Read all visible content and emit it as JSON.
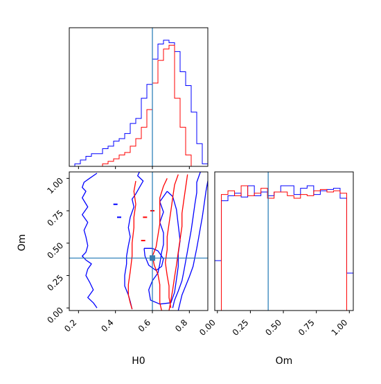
{
  "chart_data": [
    {
      "type": "histogram",
      "panel": "H0 marginal",
      "x": [
        0.15,
        0.18,
        0.21,
        0.24,
        0.27,
        0.3,
        0.33,
        0.36,
        0.39,
        0.42,
        0.45,
        0.48,
        0.51,
        0.54,
        0.57,
        0.6,
        0.63,
        0.66,
        0.69,
        0.72,
        0.75,
        0.78,
        0.81,
        0.84,
        0.87,
        0.9
      ],
      "series": [
        {
          "color": "#0000ff",
          "values": [
            0.0,
            0.02,
            0.05,
            0.08,
            0.1,
            0.1,
            0.14,
            0.16,
            0.2,
            0.22,
            0.26,
            0.34,
            0.38,
            0.54,
            0.65,
            0.85,
            0.97,
            1.0,
            0.98,
            0.91,
            0.75,
            0.64,
            0.43,
            0.18,
            0.02
          ]
        },
        {
          "color": "#ff0000",
          "values": [
            0.0,
            0.0,
            0.0,
            0.0,
            0.0,
            0.0,
            0.02,
            0.04,
            0.06,
            0.09,
            0.11,
            0.16,
            0.22,
            0.31,
            0.45,
            0.66,
            0.84,
            0.93,
            0.96,
            0.54,
            0.31,
            0.09,
            0.0,
            0.0,
            0.0
          ]
        }
      ],
      "truth": 0.6,
      "xlim": [
        0.15,
        0.9
      ]
    },
    {
      "type": "contour",
      "panel": "H0 vs Om",
      "xlabel": "H0",
      "ylabel": "Om",
      "xlim": [
        0.15,
        0.9
      ],
      "ylim": [
        -0.02,
        1.05
      ],
      "xticks": [
        "0.2",
        "0.4",
        "0.6",
        "0.8"
      ],
      "yticks": [
        "0.00",
        "0.25",
        "0.50",
        "0.75",
        "1.00"
      ],
      "truth": {
        "x": 0.6,
        "y": 0.385
      },
      "contours": [
        {
          "color": "#0000ff",
          "points": [
            [
              0.3,
              1.04
            ],
            [
              0.26,
              1.0
            ],
            [
              0.23,
              0.97
            ],
            [
              0.22,
              0.93
            ],
            [
              0.24,
              0.9
            ],
            [
              0.22,
              0.85
            ],
            [
              0.25,
              0.78
            ],
            [
              0.22,
              0.72
            ],
            [
              0.25,
              0.66
            ],
            [
              0.23,
              0.6
            ],
            [
              0.24,
              0.55
            ],
            [
              0.25,
              0.48
            ],
            [
              0.24,
              0.43
            ],
            [
              0.22,
              0.4
            ],
            [
              0.24,
              0.37
            ],
            [
              0.27,
              0.34
            ],
            [
              0.25,
              0.3
            ],
            [
              0.24,
              0.25
            ],
            [
              0.26,
              0.2
            ],
            [
              0.28,
              0.14
            ],
            [
              0.25,
              0.08
            ],
            [
              0.28,
              0.04
            ],
            [
              0.3,
              0.0
            ]
          ]
        },
        {
          "color": "#0000ff",
          "points": [
            [
              0.53,
              1.05
            ],
            [
              0.52,
              1.02
            ],
            [
              0.55,
              0.98
            ],
            [
              0.53,
              0.93
            ],
            [
              0.51,
              0.88
            ],
            [
              0.49,
              0.84
            ],
            [
              0.5,
              0.78
            ],
            [
              0.48,
              0.7
            ],
            [
              0.47,
              0.62
            ],
            [
              0.48,
              0.55
            ],
            [
              0.47,
              0.48
            ],
            [
              0.46,
              0.4
            ],
            [
              0.46,
              0.34
            ],
            [
              0.45,
              0.25
            ],
            [
              0.45,
              0.17
            ],
            [
              0.47,
              0.1
            ],
            [
              0.48,
              0.05
            ],
            [
              0.49,
              -0.01
            ]
          ]
        },
        {
          "color": "#0000ff",
          "points": [
            [
              0.86,
              1.05
            ],
            [
              0.84,
              0.97
            ],
            [
              0.84,
              0.89
            ],
            [
              0.83,
              0.8
            ],
            [
              0.82,
              0.7
            ],
            [
              0.81,
              0.6
            ],
            [
              0.8,
              0.52
            ],
            [
              0.79,
              0.44
            ],
            [
              0.78,
              0.36
            ],
            [
              0.77,
              0.28
            ],
            [
              0.76,
              0.21
            ],
            [
              0.74,
              0.13
            ],
            [
              0.72,
              0.06
            ],
            [
              0.71,
              0.0
            ]
          ]
        },
        {
          "color": "#0000ff",
          "points": [
            [
              0.9,
              0.98
            ],
            [
              0.89,
              0.9
            ],
            [
              0.88,
              0.8
            ],
            [
              0.87,
              0.7
            ],
            [
              0.86,
              0.62
            ],
            [
              0.85,
              0.54
            ],
            [
              0.84,
              0.46
            ],
            [
              0.83,
              0.39
            ],
            [
              0.82,
              0.32
            ],
            [
              0.8,
              0.24
            ],
            [
              0.78,
              0.17
            ],
            [
              0.76,
              0.1
            ],
            [
              0.75,
              0.04
            ],
            [
              0.74,
              -0.02
            ]
          ]
        },
        {
          "color": "#0000ff",
          "points": [
            [
              0.68,
              0.9
            ],
            [
              0.64,
              0.82
            ],
            [
              0.66,
              0.74
            ],
            [
              0.64,
              0.66
            ],
            [
              0.66,
              0.58
            ],
            [
              0.66,
              0.49
            ],
            [
              0.65,
              0.43
            ],
            [
              0.64,
              0.34
            ],
            [
              0.63,
              0.27
            ],
            [
              0.6,
              0.21
            ],
            [
              0.58,
              0.14
            ],
            [
              0.59,
              0.06
            ],
            [
              0.64,
              0.03
            ],
            [
              0.7,
              0.04
            ],
            [
              0.72,
              0.12
            ],
            [
              0.73,
              0.22
            ],
            [
              0.74,
              0.32
            ],
            [
              0.74,
              0.42
            ],
            [
              0.75,
              0.52
            ],
            [
              0.74,
              0.64
            ],
            [
              0.73,
              0.76
            ],
            [
              0.71,
              0.86
            ],
            [
              0.68,
              0.9
            ]
          ]
        },
        {
          "color": "#0000ff",
          "points": [
            [
              0.555,
              0.46
            ],
            [
              0.56,
              0.4
            ],
            [
              0.58,
              0.33
            ],
            [
              0.62,
              0.29
            ],
            [
              0.65,
              0.32
            ],
            [
              0.66,
              0.38
            ],
            [
              0.63,
              0.44
            ],
            [
              0.6,
              0.46
            ],
            [
              0.555,
              0.46
            ]
          ]
        },
        {
          "color": "#ff0000",
          "points": [
            [
              0.68,
              1.0
            ],
            [
              0.66,
              0.94
            ],
            [
              0.64,
              0.85
            ],
            [
              0.64,
              0.74
            ],
            [
              0.64,
              0.65
            ],
            [
              0.63,
              0.56
            ],
            [
              0.62,
              0.47
            ],
            [
              0.6,
              0.4
            ],
            [
              0.61,
              0.33
            ],
            [
              0.63,
              0.26
            ],
            [
              0.64,
              0.18
            ],
            [
              0.64,
              0.1
            ],
            [
              0.64,
              0.04
            ],
            [
              0.65,
              -0.02
            ]
          ]
        },
        {
          "color": "#ff0000",
          "points": [
            [
              0.74,
              1.03
            ],
            [
              0.72,
              0.95
            ],
            [
              0.71,
              0.85
            ],
            [
              0.7,
              0.75
            ],
            [
              0.69,
              0.65
            ],
            [
              0.68,
              0.55
            ],
            [
              0.68,
              0.45
            ],
            [
              0.67,
              0.35
            ],
            [
              0.68,
              0.25
            ],
            [
              0.69,
              0.17
            ],
            [
              0.69,
              0.08
            ],
            [
              0.7,
              0.0
            ]
          ]
        },
        {
          "color": "#ff0000",
          "points": [
            [
              0.79,
              1.03
            ],
            [
              0.78,
              0.93
            ],
            [
              0.77,
              0.83
            ],
            [
              0.76,
              0.73
            ],
            [
              0.76,
              0.63
            ],
            [
              0.75,
              0.53
            ],
            [
              0.74,
              0.43
            ],
            [
              0.73,
              0.33
            ],
            [
              0.72,
              0.24
            ],
            [
              0.71,
              0.14
            ],
            [
              0.7,
              0.06
            ],
            [
              0.69,
              -0.02
            ]
          ]
        },
        {
          "color": "#ff0000",
          "points": [
            [
              0.51,
              0.98
            ],
            [
              0.5,
              0.9
            ],
            [
              0.51,
              0.8
            ],
            [
              0.5,
              0.7
            ],
            [
              0.5,
              0.62
            ],
            [
              0.49,
              0.5
            ],
            [
              0.49,
              0.4
            ],
            [
              0.48,
              0.28
            ],
            [
              0.47,
              0.18
            ],
            [
              0.47,
              0.1
            ],
            [
              0.48,
              0.04
            ],
            [
              0.49,
              -0.01
            ]
          ]
        }
      ],
      "markers": [
        {
          "color": "#0000ff",
          "x": 0.4,
          "y": 0.8
        },
        {
          "color": "#0000ff",
          "x": 0.42,
          "y": 0.7
        },
        {
          "color": "#ff0000",
          "x": 0.56,
          "y": 0.7
        },
        {
          "color": "#ff0000",
          "x": 0.55,
          "y": 0.52
        },
        {
          "color": "#ff0000",
          "x": 0.6,
          "y": 0.75
        }
      ]
    },
    {
      "type": "histogram",
      "panel": "Om marginal",
      "xlabel": "Om",
      "x": [
        -0.02,
        0.03,
        0.08,
        0.13,
        0.18,
        0.23,
        0.28,
        0.33,
        0.38,
        0.43,
        0.48,
        0.53,
        0.58,
        0.63,
        0.68,
        0.73,
        0.78,
        0.83,
        0.88,
        0.93,
        0.98,
        1.03
      ],
      "series": [
        {
          "color": "#0000ff",
          "values": [
            0.4,
            0.88,
            0.92,
            0.94,
            0.91,
            1.0,
            0.92,
            0.95,
            0.92,
            0.95,
            1.0,
            1.0,
            0.93,
            0.98,
            1.0,
            0.93,
            0.96,
            0.97,
            0.98,
            0.9,
            0.3
          ]
        },
        {
          "color": "#ff0000",
          "values": [
            0.0,
            0.93,
            0.96,
            0.92,
            1.0,
            0.92,
            0.94,
            0.98,
            0.9,
            0.95,
            0.95,
            0.92,
            0.9,
            0.93,
            0.92,
            0.96,
            0.97,
            0.95,
            0.96,
            0.94,
            0.0
          ]
        }
      ],
      "truth": 0.385,
      "xlim": [
        -0.02,
        1.03
      ],
      "xticks": [
        "0.00",
        "0.25",
        "0.50",
        "0.75",
        "1.00"
      ]
    }
  ]
}
